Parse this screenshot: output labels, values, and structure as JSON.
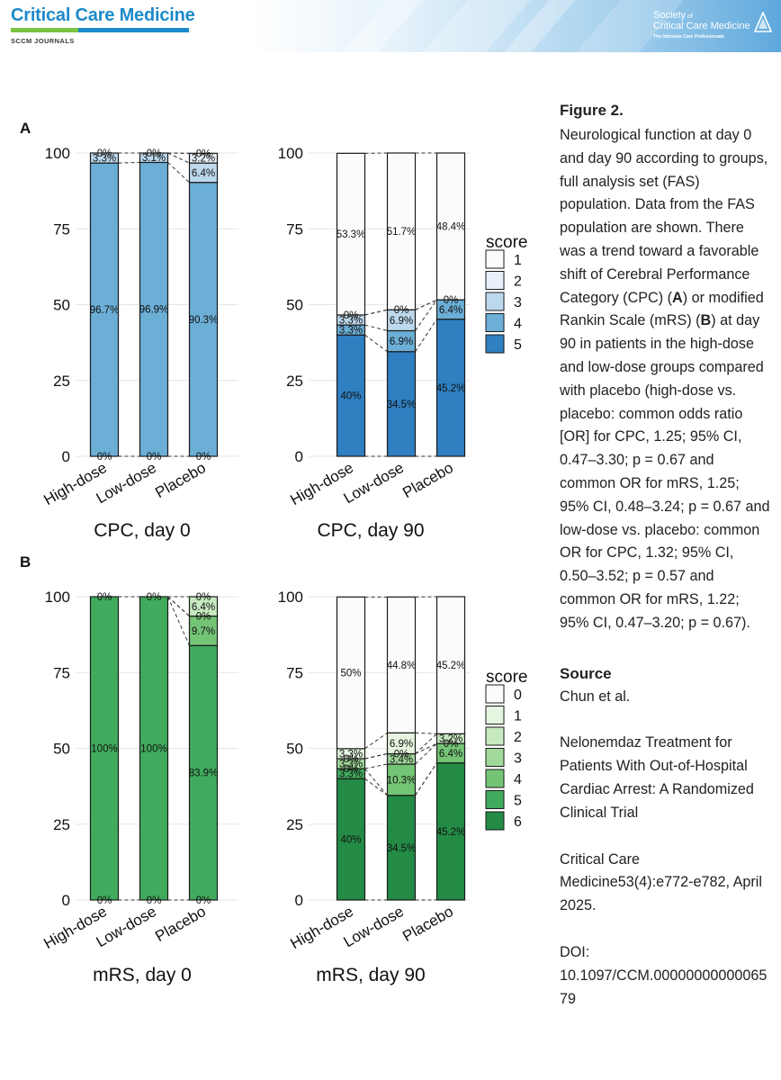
{
  "header": {
    "journal": "Critical Care Medicine",
    "journal_sub": "SCCM JOURNALS",
    "society_line1a": "Society",
    "society_line1b": " of",
    "society_line2": "Critical Care Medicine",
    "society_line3": "The Intensive Care Professionals",
    "brand_blue": "#1d8ac9",
    "brand_green": "#7bc243"
  },
  "caption": {
    "title": "Figure 2.",
    "body_parts": [
      "Neurological function at day 0 and day 90 according to groups, full analysis set (FAS) population. Data from the FAS population are shown. There was a trend toward a favorable shift of Cerebral Performance Category (CPC) (",
      "A",
      ") or modified Rankin Scale (mRS) (",
      "B",
      ") at day 90 in patients in the high-dose and low-dose groups compared with placebo (high-dose vs. placebo: common odds ratio [OR] for CPC, 1.25; 95% CI, 0.47–3.30; p = 0.67 and common OR for mRS, 1.25; 95% CI, 0.48–3.24; p = 0.67 and low-dose vs. placebo: common OR for CPC, 1.32; 95% CI, 0.50–3.52; p = 0.57 and common OR for mRS, 1.22; 95% CI, 0.47–3.20; p = 0.67)."
    ],
    "source_title": "Source",
    "source_authors": "Chun et al.",
    "article_title": "Nelonemdaz Treatment for Patients With Out-of-Hospital Cardiac Arrest: A Randomized Clinical Trial",
    "citation": "Critical Care Medicine53(4):e772-e782, April 2025.",
    "doi_label": "DOI:",
    "doi": "10.1097/CCM.0000000000006579"
  },
  "panel_labels": [
    "A",
    "B"
  ],
  "chart_data": [
    {
      "type": "bar",
      "stacked": true,
      "title": "CPC, day 0",
      "categories": [
        "High-dose",
        "Low-dose",
        "Placebo"
      ],
      "ylim": [
        0,
        100
      ],
      "yticks": [
        0,
        25,
        50,
        75,
        100
      ],
      "series": [
        {
          "score": 5,
          "values": [
            0,
            0,
            0
          ],
          "labels": [
            "0%",
            "0%",
            "0%"
          ],
          "color": "#2f7fc1"
        },
        {
          "score": 4,
          "values": [
            96.7,
            96.9,
            90.3
          ],
          "labels": [
            "96.7%",
            "96.9%",
            "90.3%"
          ],
          "color": "#6baed6"
        },
        {
          "score": 3,
          "values": [
            3.3,
            3.1,
            6.4
          ],
          "labels": [
            "3.3%",
            "3.1%",
            "6.4%"
          ],
          "color": "#bcd8ec"
        },
        {
          "score": 2,
          "values": [
            0,
            0,
            3.2
          ],
          "labels": [
            "",
            "",
            "3.2%"
          ],
          "color": "#e8f1fa"
        },
        {
          "score": 1,
          "values": [
            0,
            0,
            0
          ],
          "labels": [
            "0%",
            "0%",
            "0%"
          ],
          "color": "#fbfbfb"
        }
      ],
      "grid": true
    },
    {
      "type": "bar",
      "stacked": true,
      "title": "CPC, day 90",
      "categories": [
        "High-dose",
        "Low-dose",
        "Placebo"
      ],
      "ylim": [
        0,
        100
      ],
      "yticks": [
        0,
        25,
        50,
        75,
        100
      ],
      "series": [
        {
          "score": 5,
          "values": [
            40,
            34.5,
            45.2
          ],
          "labels": [
            "40%",
            "34.5%",
            "45.2%"
          ],
          "color": "#2f7fc1"
        },
        {
          "score": 4,
          "values": [
            3.3,
            6.9,
            6.4
          ],
          "labels": [
            "3.3%",
            "6.9%",
            "6.4%"
          ],
          "color": "#6baed6"
        },
        {
          "score": 3,
          "values": [
            3.3,
            6.9,
            0
          ],
          "labels": [
            "3.3%",
            "6.9%",
            "0%"
          ],
          "color": "#bcd8ec"
        },
        {
          "score": 2,
          "values": [
            0,
            0,
            0
          ],
          "labels": [
            "0%",
            "0%",
            ""
          ],
          "color": "#e8f1fa"
        },
        {
          "score": 1,
          "values": [
            53.3,
            51.7,
            48.4
          ],
          "labels": [
            "53.3%",
            "51.7%",
            "48.4%"
          ],
          "color": "#fbfbfb"
        }
      ],
      "legend": {
        "title": "score",
        "entries": [
          "1",
          "2",
          "3",
          "4",
          "5"
        ],
        "colors": [
          "#fbfbfb",
          "#e8f1fa",
          "#bcd8ec",
          "#6baed6",
          "#2f7fc1"
        ],
        "position": "right"
      },
      "grid": true
    },
    {
      "type": "bar",
      "stacked": true,
      "title": "mRS, day 0",
      "categories": [
        "High-dose",
        "Low-dose",
        "Placebo"
      ],
      "ylim": [
        0,
        100
      ],
      "yticks": [
        0,
        25,
        50,
        75,
        100
      ],
      "series": [
        {
          "score": 6,
          "values": [
            0,
            0,
            0
          ],
          "labels": [
            "0%",
            "0%",
            "0%"
          ],
          "color": "#238b45"
        },
        {
          "score": 5,
          "values": [
            100,
            100,
            83.9
          ],
          "labels": [
            "100%",
            "100%",
            "83.9%"
          ],
          "color": "#41ab5d"
        },
        {
          "score": 4,
          "values": [
            0,
            0,
            9.7
          ],
          "labels": [
            "",
            "",
            "9.7%"
          ],
          "color": "#74c476"
        },
        {
          "score": 3,
          "values": [
            0,
            0,
            0
          ],
          "labels": [
            "",
            "",
            "0%"
          ],
          "color": "#a1d99b"
        },
        {
          "score": 2,
          "values": [
            0,
            0,
            6.4
          ],
          "labels": [
            "",
            "",
            "6.4%"
          ],
          "color": "#c7e9c0"
        },
        {
          "score": 1,
          "values": [
            0,
            0,
            0
          ],
          "labels": [
            "",
            "",
            ""
          ],
          "color": "#e5f5e0"
        },
        {
          "score": 0,
          "values": [
            0,
            0,
            0
          ],
          "labels": [
            "0%",
            "0%",
            "0%"
          ],
          "color": "#fbfbfb"
        }
      ],
      "grid": true
    },
    {
      "type": "bar",
      "stacked": true,
      "title": "mRS, day 90",
      "categories": [
        "High-dose",
        "Low-dose",
        "Placebo"
      ],
      "ylim": [
        0,
        100
      ],
      "yticks": [
        0,
        25,
        50,
        75,
        100
      ],
      "series": [
        {
          "score": 6,
          "values": [
            40,
            34.5,
            45.2
          ],
          "labels": [
            "40%",
            "34.5%",
            "45.2%"
          ],
          "color": "#238b45"
        },
        {
          "score": 5,
          "values": [
            3.3,
            0,
            0
          ],
          "labels": [
            "3.3%",
            "",
            ""
          ],
          "color": "#41ab5d"
        },
        {
          "score": 4,
          "values": [
            0,
            10.3,
            6.4
          ],
          "labels": [
            "0%",
            "10.3%",
            "6.4%"
          ],
          "color": "#74c476"
        },
        {
          "score": 3,
          "values": [
            3.3,
            3.4,
            0
          ],
          "labels": [
            "3.3%",
            "3.4%",
            "0%"
          ],
          "color": "#a1d99b"
        },
        {
          "score": 2,
          "values": [
            0,
            0,
            3.2
          ],
          "labels": [
            "0%",
            "0%",
            "3.2%"
          ],
          "color": "#c7e9c0"
        },
        {
          "score": 1,
          "values": [
            3.3,
            6.9,
            0
          ],
          "labels": [
            "3.3%",
            "6.9%",
            ""
          ],
          "color": "#e5f5e0"
        },
        {
          "score": 0,
          "values": [
            50,
            44.8,
            45.2
          ],
          "labels": [
            "50%",
            "44.8%",
            "45.2%"
          ],
          "color": "#fbfbfb"
        }
      ],
      "legend": {
        "title": "score",
        "entries": [
          "0",
          "1",
          "2",
          "3",
          "4",
          "5",
          "6"
        ],
        "colors": [
          "#fbfbfb",
          "#e5f5e0",
          "#c7e9c0",
          "#a1d99b",
          "#74c476",
          "#41ab5d",
          "#238b45"
        ],
        "position": "right"
      },
      "grid": true
    }
  ]
}
